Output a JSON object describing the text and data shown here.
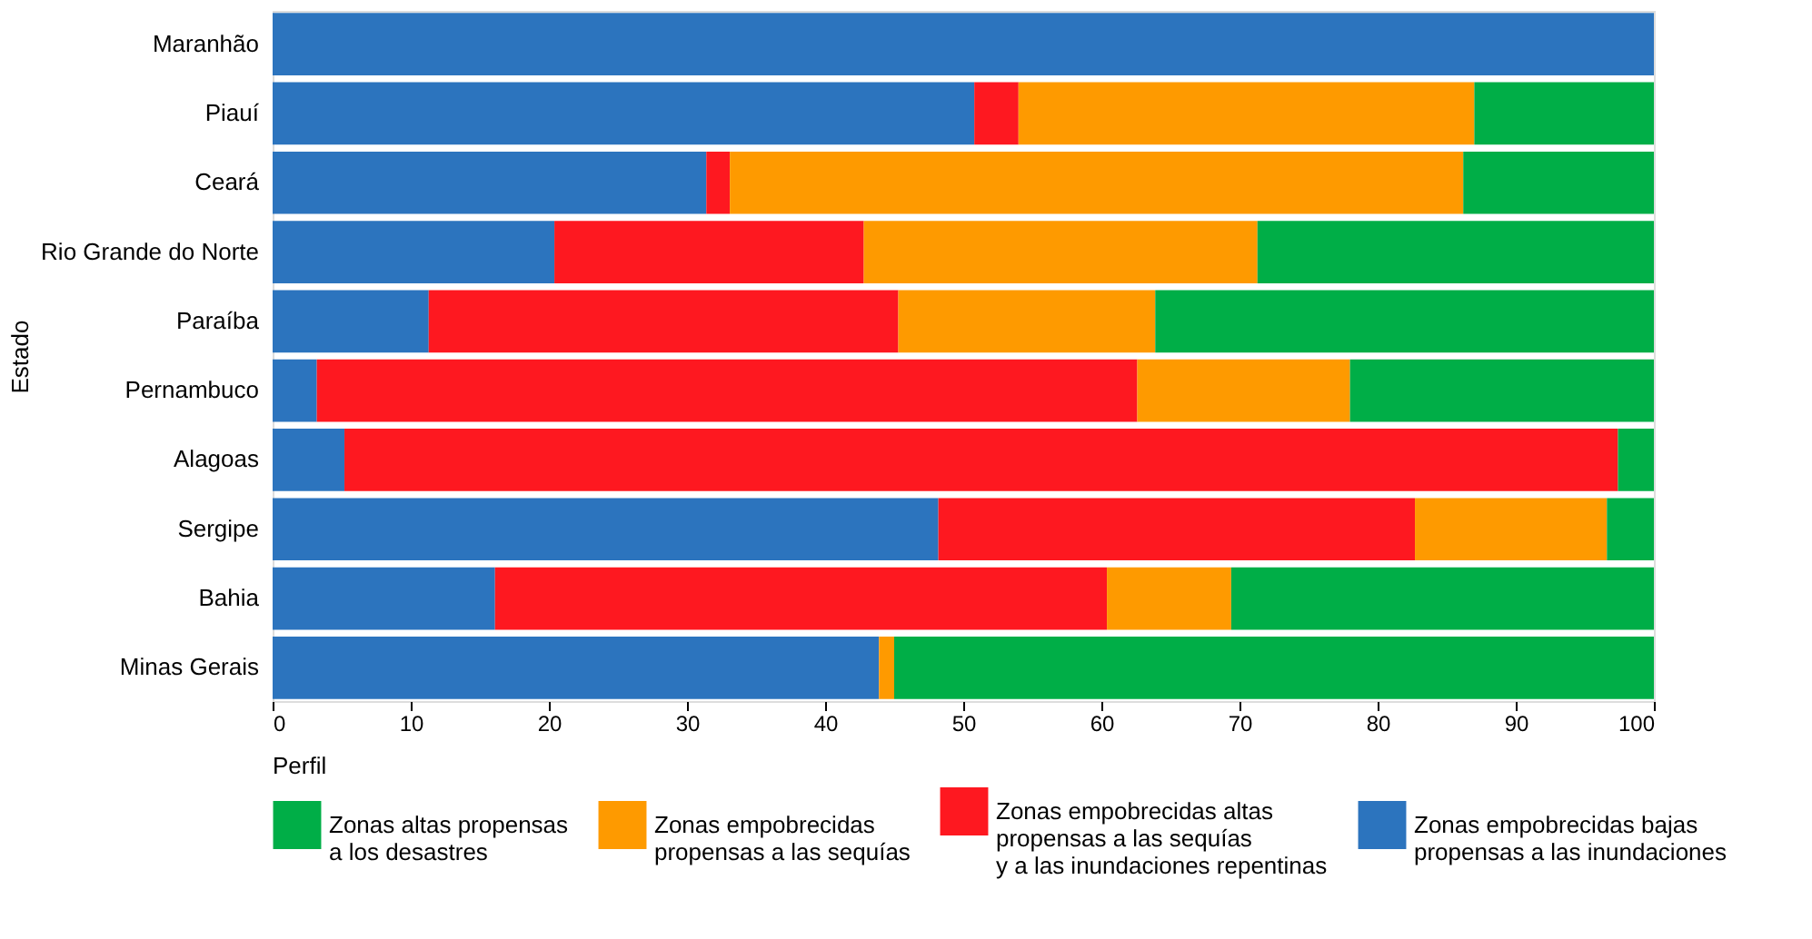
{
  "chart_data": {
    "type": "bar",
    "orientation": "horizontal",
    "stacked": true,
    "ylabel": "Estado",
    "legend_title": "Perfil",
    "legend": "bottom",
    "grid": false,
    "categories": [
      "Maranhão",
      "Piauí",
      "Ceará",
      "Rio Grande do Norte",
      "Paraíba",
      "Pernambuco",
      "Alagoas",
      "Sergipe",
      "Bahia",
      "Minas Gerais"
    ],
    "xlim": [
      0,
      100
    ],
    "xticks": [
      0,
      10,
      20,
      30,
      40,
      50,
      60,
      70,
      80,
      90,
      100
    ],
    "series": [
      {
        "name": "Zonas empobrecidas bajas\npropensas a las inundaciones",
        "color": "#2c74be",
        "values": [
          100,
          50.8,
          31.4,
          20.4,
          11.3,
          3.2,
          5.2,
          48.2,
          16.1,
          43.9
        ]
      },
      {
        "name": "Zonas empobrecidas altas\npropensas a las sequías\ny a las inundaciones repentinas",
        "color": "#fe1820",
        "values": [
          0,
          3.2,
          1.7,
          22.4,
          34.0,
          59.4,
          92.2,
          34.5,
          44.3,
          0
        ]
      },
      {
        "name": "Zonas empobrecidas\npropensas a las sequías",
        "color": "#fe9a00",
        "values": [
          0,
          33.0,
          53.1,
          28.5,
          18.6,
          15.4,
          0,
          13.9,
          9.0,
          1.1
        ]
      },
      {
        "name": "Zonas altas propensas\na los desastres",
        "color": "#00ae47",
        "values": [
          0,
          13.0,
          13.8,
          28.7,
          36.1,
          22.0,
          2.6,
          3.4,
          30.6,
          55.0
        ]
      }
    ]
  }
}
